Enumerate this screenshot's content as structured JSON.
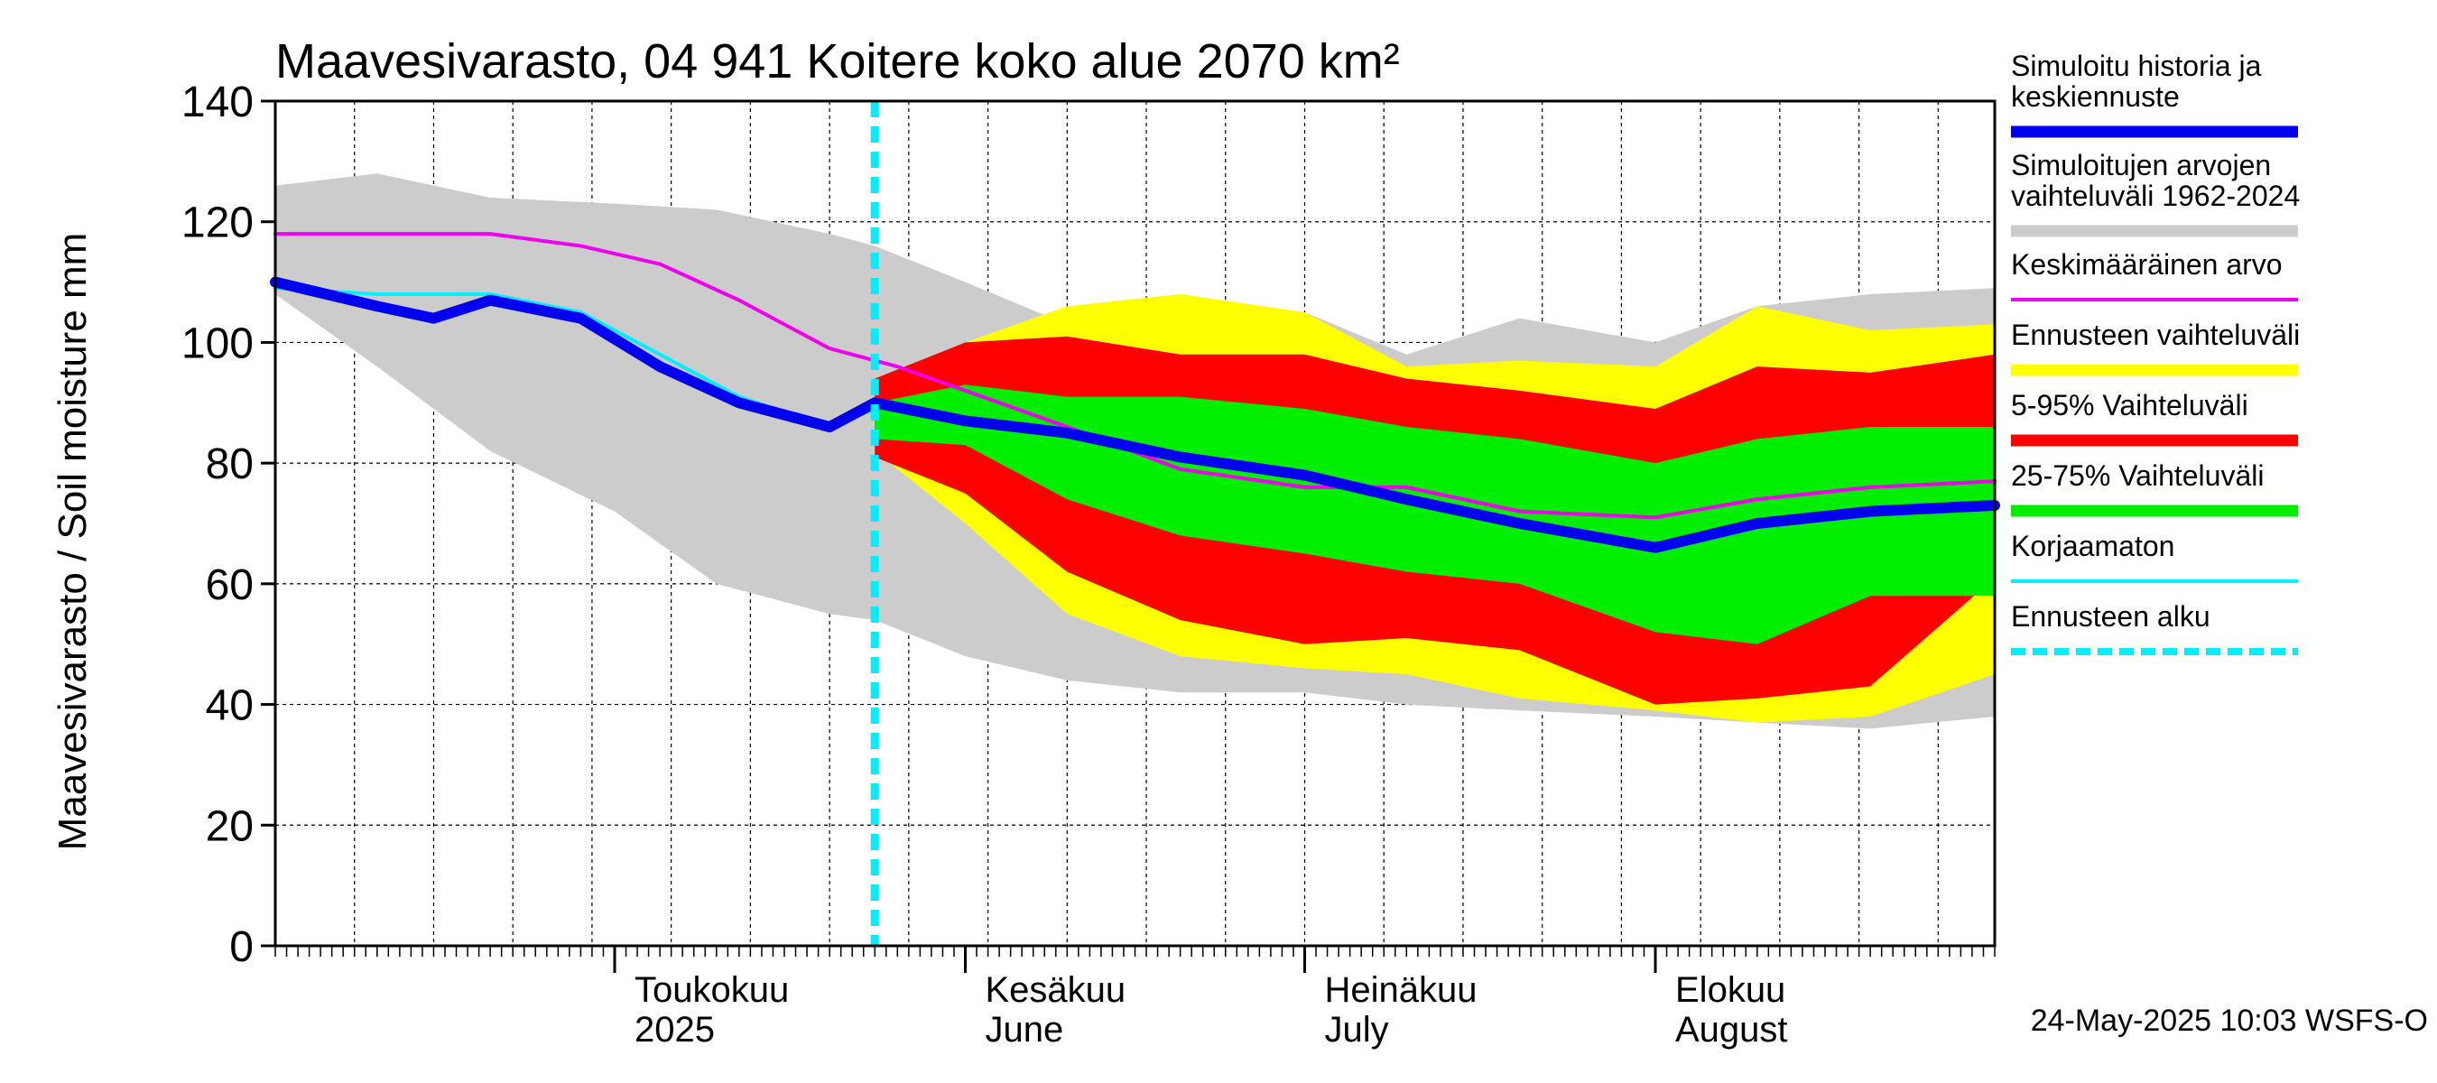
{
  "chart_data": {
    "type": "area",
    "title": "Maavesivarasto, 04 941 Koitere koko alue 2070 km²",
    "ylabel": "Maavesivarasto / Soil moisture   mm",
    "ylim": [
      0,
      140
    ],
    "yticks": [
      0,
      20,
      40,
      60,
      80,
      100,
      120,
      140
    ],
    "xlim": [
      "2025-04-01",
      "2025-08-31"
    ],
    "grid": true,
    "forecast_start": "2025-05-24",
    "month_labels": [
      {
        "date": "2025-05-01",
        "fi": "Toukokuu",
        "en": "2025"
      },
      {
        "date": "2025-06-01",
        "fi": "Kesäkuu",
        "en": "June"
      },
      {
        "date": "2025-07-01",
        "fi": "Heinäkuu",
        "en": "July"
      },
      {
        "date": "2025-08-01",
        "fi": "Elokuu",
        "en": "August"
      }
    ],
    "legend_position": "right",
    "legend": [
      {
        "label": "Simuloitu historia ja keskiennuste",
        "lines": [
          "Simuloitu historia ja",
          "keskiennuste"
        ],
        "color": "#0000ee",
        "style": "thick"
      },
      {
        "label": "Simuloitujen arvojen vaihteluväli 1962-2024",
        "lines": [
          "Simuloitujen arvojen",
          "vaihteluväli 1962-2024"
        ],
        "color": "#cccccc",
        "style": "band"
      },
      {
        "label": "Keskimääräinen arvo",
        "lines": [
          "Keskimääräinen arvo"
        ],
        "color": "#ee00ee",
        "style": "thin"
      },
      {
        "label": "Ennusteen vaihteluväli",
        "lines": [
          "Ennusteen vaihteluväli"
        ],
        "color": "#ffff00",
        "style": "band"
      },
      {
        "label": "5-95% Vaihteluväli",
        "lines": [
          "5-95% Vaihteluväli"
        ],
        "color": "#ff0000",
        "style": "band"
      },
      {
        "label": "25-75% Vaihteluväli",
        "lines": [
          "25-75% Vaihteluväli"
        ],
        "color": "#00ee00",
        "style": "band"
      },
      {
        "label": "Korjaamaton",
        "lines": [
          "Korjaamaton"
        ],
        "color": "#00eeff",
        "style": "thin"
      },
      {
        "label": "Ennusteen alku",
        "lines": [
          "Ennusteen alku"
        ],
        "color": "#00eeff",
        "style": "dashed"
      }
    ],
    "series": [
      {
        "name": "Simuloitujen arvojen vaihteluväli 1962-2024",
        "kind": "band",
        "x": [
          "2025-04-01",
          "2025-04-10",
          "2025-04-20",
          "2025-05-01",
          "2025-05-10",
          "2025-05-20",
          "2025-05-24",
          "2025-06-01",
          "2025-06-10",
          "2025-06-20",
          "2025-07-01",
          "2025-07-10",
          "2025-07-20",
          "2025-08-01",
          "2025-08-10",
          "2025-08-20",
          "2025-08-31"
        ],
        "upper": [
          126,
          128,
          124,
          123,
          122,
          118,
          116,
          110,
          103,
          106,
          105,
          98,
          104,
          100,
          106,
          108,
          109
        ],
        "lower": [
          108,
          96,
          82,
          72,
          60,
          55,
          54,
          48,
          44,
          42,
          42,
          40,
          39,
          38,
          37,
          36,
          38
        ]
      },
      {
        "name": "Ennusteen vaihteluväli",
        "kind": "band",
        "x": [
          "2025-05-24",
          "2025-06-01",
          "2025-06-10",
          "2025-06-20",
          "2025-07-01",
          "2025-07-10",
          "2025-07-20",
          "2025-08-01",
          "2025-08-10",
          "2025-08-20",
          "2025-08-31"
        ],
        "upper": [
          90,
          100,
          106,
          108,
          105,
          96,
          97,
          96,
          106,
          102,
          103
        ],
        "lower": [
          82,
          70,
          55,
          48,
          46,
          45,
          41,
          39,
          37,
          38,
          45
        ]
      },
      {
        "name": "5-95% Vaihteluväli",
        "kind": "band",
        "x": [
          "2025-05-24",
          "2025-06-01",
          "2025-06-10",
          "2025-06-20",
          "2025-07-01",
          "2025-07-10",
          "2025-07-20",
          "2025-08-01",
          "2025-08-10",
          "2025-08-20",
          "2025-08-31"
        ],
        "upper": [
          94,
          100,
          101,
          98,
          98,
          94,
          92,
          89,
          96,
          95,
          98
        ],
        "lower": [
          81,
          75,
          62,
          54,
          50,
          51,
          49,
          40,
          41,
          43,
          61
        ]
      },
      {
        "name": "25-75% Vaihteluväli",
        "kind": "band",
        "x": [
          "2025-05-24",
          "2025-06-01",
          "2025-06-10",
          "2025-06-20",
          "2025-07-01",
          "2025-07-10",
          "2025-07-20",
          "2025-08-01",
          "2025-08-10",
          "2025-08-20",
          "2025-08-31"
        ],
        "upper": [
          90,
          93,
          91,
          91,
          89,
          86,
          84,
          80,
          84,
          86,
          86
        ],
        "lower": [
          84,
          83,
          74,
          68,
          65,
          62,
          60,
          52,
          50,
          58,
          58
        ]
      },
      {
        "name": "Keskimääräinen arvo",
        "kind": "line",
        "x": [
          "2025-04-01",
          "2025-04-10",
          "2025-04-20",
          "2025-04-28",
          "2025-05-05",
          "2025-05-12",
          "2025-05-20",
          "2025-05-26",
          "2025-06-01",
          "2025-06-10",
          "2025-06-20",
          "2025-07-01",
          "2025-07-10",
          "2025-07-20",
          "2025-08-01",
          "2025-08-10",
          "2025-08-20",
          "2025-08-31"
        ],
        "y": [
          118,
          118,
          118,
          116,
          113,
          107,
          99,
          96,
          92,
          86,
          79,
          76,
          76,
          72,
          71,
          74,
          76,
          77
        ]
      },
      {
        "name": "Korjaamaton",
        "kind": "line",
        "x": [
          "2025-04-01",
          "2025-04-10",
          "2025-04-15",
          "2025-04-20",
          "2025-04-28",
          "2025-05-05",
          "2025-05-12",
          "2025-05-20",
          "2025-05-24"
        ],
        "y": [
          109,
          108,
          108,
          108,
          105,
          98,
          91,
          86,
          89
        ]
      },
      {
        "name": "Simuloitu historia ja keskiennuste",
        "kind": "line",
        "x": [
          "2025-04-01",
          "2025-04-10",
          "2025-04-15",
          "2025-04-20",
          "2025-04-28",
          "2025-05-05",
          "2025-05-12",
          "2025-05-16",
          "2025-05-20",
          "2025-05-24",
          "2025-06-01",
          "2025-06-10",
          "2025-06-20",
          "2025-07-01",
          "2025-07-10",
          "2025-07-20",
          "2025-08-01",
          "2025-08-10",
          "2025-08-20",
          "2025-08-31"
        ],
        "y": [
          110,
          106,
          104,
          107,
          104,
          96,
          90,
          88,
          86,
          90,
          87,
          85,
          81,
          78,
          74,
          70,
          66,
          70,
          72,
          73
        ]
      }
    ],
    "footer": "24-May-2025 10:03 WSFS-O"
  }
}
